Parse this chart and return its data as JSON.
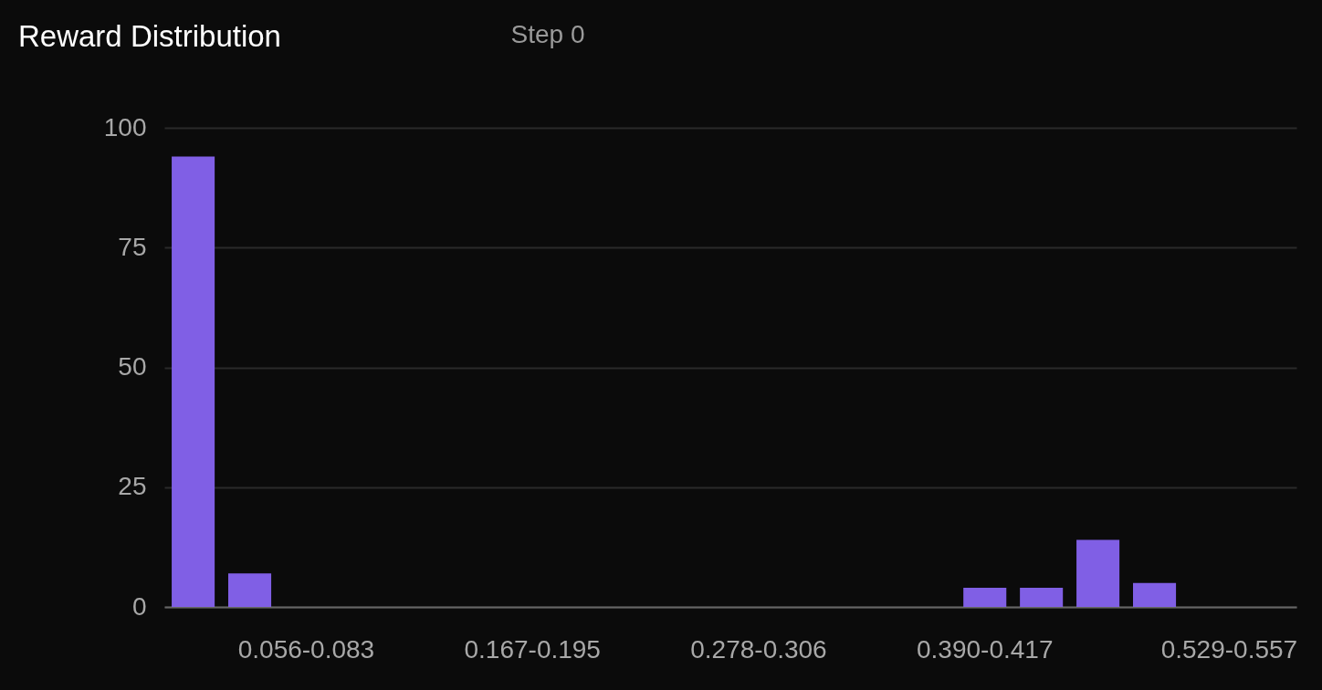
{
  "chart_data": {
    "type": "bar",
    "title": "Reward Distribution",
    "subtitle": "Step 0",
    "categories": [
      null,
      null,
      "0.056-0.083",
      null,
      null,
      null,
      "0.167-0.195",
      null,
      null,
      null,
      "0.278-0.306",
      null,
      null,
      null,
      "0.390-0.417",
      null,
      null,
      null,
      null,
      "0.529-0.557"
    ],
    "values": [
      94,
      7,
      0,
      0,
      0,
      0,
      0,
      0,
      0,
      0,
      0,
      0,
      0,
      0,
      4,
      4,
      14,
      5,
      0,
      0
    ],
    "color": "#805fe5",
    "ylim": [
      0,
      100
    ],
    "yticks": [
      0,
      25,
      50,
      75,
      100
    ],
    "grid": "y"
  }
}
